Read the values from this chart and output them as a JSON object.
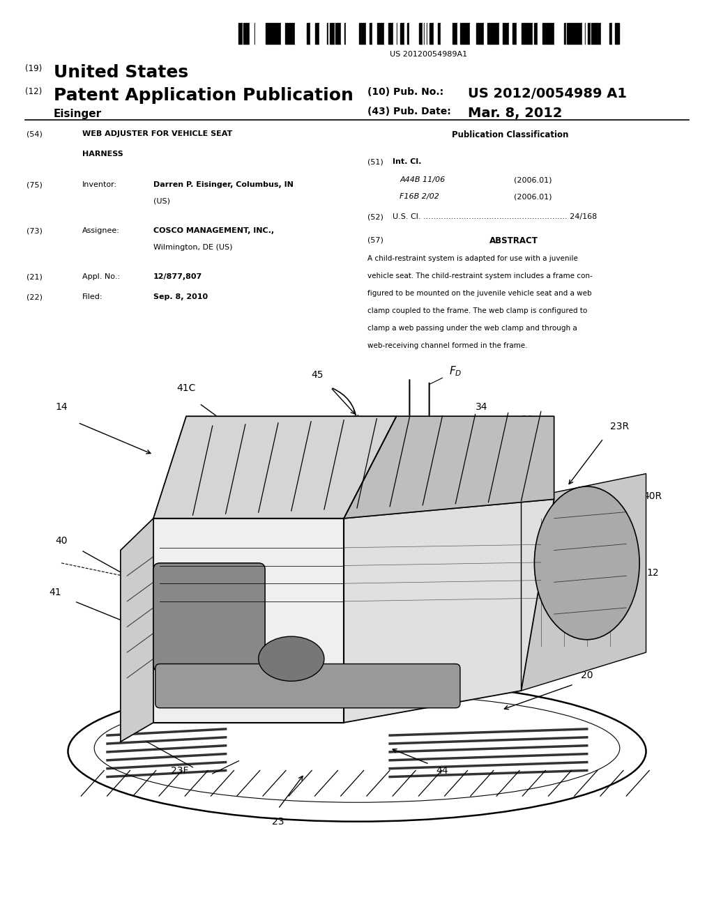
{
  "background_color": "#ffffff",
  "barcode_text": "US 20120054989A1",
  "patent_number": "US 2012/0054989 A1",
  "pub_date": "Mar. 8, 2012",
  "country": "United States",
  "kind": "Patent Application Publication",
  "inventor_name": "Eisinger",
  "field_19": "(19)",
  "field_12": "(12)",
  "field_10_label": "(10) Pub. No.:",
  "field_43_label": "(43) Pub. Date:",
  "field_54_label": "(54)",
  "field_54_title_line1": "WEB ADJUSTER FOR VEHICLE SEAT",
  "field_54_title_line2": "HARNESS",
  "field_75_label": "(75)",
  "field_75_key": "Inventor:",
  "field_75_value_line1": "Darren P. Eisinger, Columbus, IN",
  "field_75_value_line2": "(US)",
  "field_73_label": "(73)",
  "field_73_key": "Assignee:",
  "field_73_value_line1": "COSCO MANAGEMENT, INC.,",
  "field_73_value_line2": "Wilmington, DE (US)",
  "field_21_label": "(21)",
  "field_21_key": "Appl. No.:",
  "field_21_value": "12/877,807",
  "field_22_label": "(22)",
  "field_22_key": "Filed:",
  "field_22_value": "Sep. 8, 2010",
  "pub_class_title": "Publication Classification",
  "field_51_label": "(51)",
  "field_51_key": "Int. Cl.",
  "field_51_line1_code": "A44B 11/06",
  "field_51_line1_date": "(2006.01)",
  "field_51_line2_code": "F16B 2/02",
  "field_51_line2_date": "(2006.01)",
  "field_52_label": "(52)",
  "field_52_text": "U.S. Cl. ......................................................... 24/168",
  "field_57_label": "(57)",
  "field_57_title": "ABSTRACT",
  "abstract_lines": [
    "A child-restraint system is adapted for use with a juvenile",
    "vehicle seat. The child-restraint system includes a frame con-",
    "figured to be mounted on the juvenile vehicle seat and a web",
    "clamp coupled to the frame. The web clamp is configured to",
    "clamp a web passing under the web clamp and through a",
    "web-receiving channel formed in the frame."
  ]
}
